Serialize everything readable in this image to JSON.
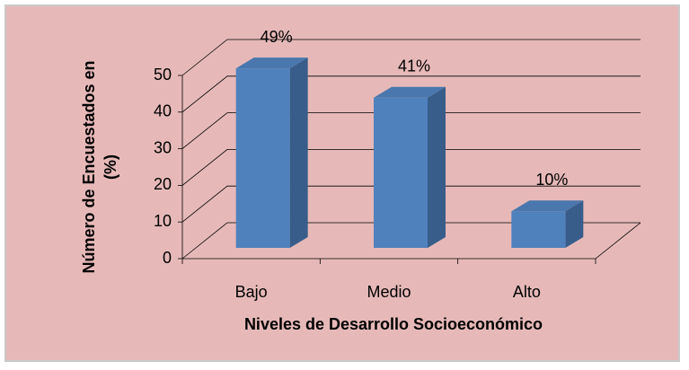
{
  "chart_data": {
    "type": "bar3d",
    "categories": [
      "Bajo",
      "Medio",
      "Alto"
    ],
    "values": [
      49,
      41,
      10
    ],
    "value_labels": [
      "49%",
      "41%",
      "10%"
    ],
    "color": "#4f81bd",
    "ylim": [
      0,
      50
    ],
    "yticks": [
      0,
      10,
      20,
      30,
      40,
      50
    ],
    "grid": true,
    "xlabel": "Niveles de Desarrollo Socioeconómico",
    "ylabel": [
      "Número de Encuestados en",
      "(%)"
    ]
  }
}
